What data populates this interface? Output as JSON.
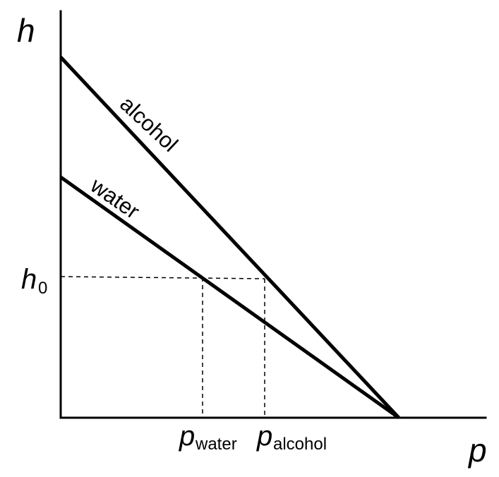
{
  "axes": {
    "y_title": "h",
    "x_title": "p"
  },
  "ticks": {
    "h0_main": "h",
    "h0_sub": "0",
    "p_water_main": "p",
    "p_water_sub": "water",
    "p_alcohol_main": "p",
    "p_alcohol_sub": "alcohol"
  },
  "curves": {
    "alcohol_label": "alcohol",
    "water_label": "water"
  }
}
